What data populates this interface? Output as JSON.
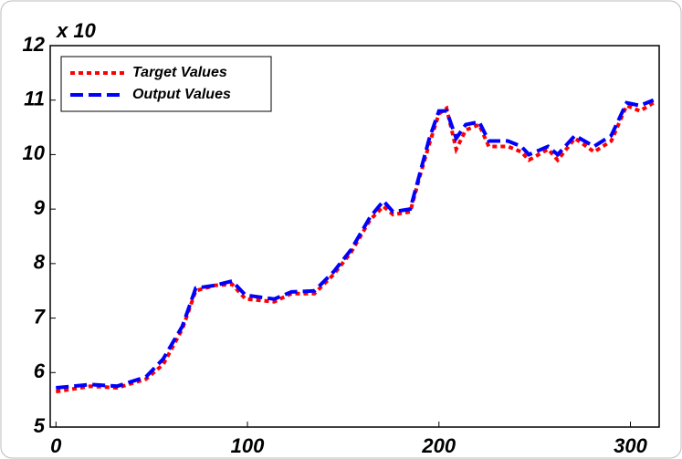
{
  "chart_data": {
    "type": "line",
    "y_multiplier_label": "x 10",
    "x": [
      0,
      18,
      32,
      47,
      56,
      66,
      73,
      83,
      92,
      99,
      114,
      123,
      135,
      145,
      154,
      164,
      171,
      176,
      185,
      190,
      195,
      200,
      204,
      209,
      214,
      221,
      226,
      236,
      243,
      247,
      257,
      262,
      271,
      281,
      290,
      298,
      305,
      312
    ],
    "series": [
      {
        "name": "Target Values",
        "color": "#ff0000",
        "dash": "dotted",
        "values": [
          5.65,
          5.75,
          5.72,
          5.88,
          6.15,
          6.8,
          7.5,
          7.6,
          7.62,
          7.35,
          7.3,
          7.45,
          7.45,
          7.8,
          8.2,
          8.8,
          9.05,
          8.9,
          8.95,
          9.6,
          10.2,
          10.75,
          10.85,
          10.1,
          10.45,
          10.55,
          10.15,
          10.15,
          10.05,
          9.9,
          10.1,
          9.9,
          10.3,
          10.05,
          10.25,
          10.9,
          10.8,
          10.95
        ]
      },
      {
        "name": "Output Values",
        "color": "#0000ff",
        "dash": "dashed",
        "values": [
          5.72,
          5.78,
          5.75,
          5.92,
          6.25,
          6.85,
          7.55,
          7.6,
          7.68,
          7.42,
          7.35,
          7.48,
          7.5,
          7.85,
          8.25,
          8.85,
          9.15,
          8.95,
          9.0,
          9.65,
          10.3,
          10.8,
          10.8,
          10.3,
          10.55,
          10.6,
          10.25,
          10.25,
          10.15,
          10.0,
          10.15,
          10.0,
          10.35,
          10.15,
          10.35,
          10.95,
          10.9,
          11.0
        ]
      }
    ],
    "xlim": [
      -3,
      315
    ],
    "xticks": [
      0,
      100,
      200,
      300
    ],
    "ylim": [
      5,
      12
    ],
    "yticks": [
      5,
      6,
      7,
      8,
      9,
      10,
      11,
      12
    ],
    "legend": "upper left"
  }
}
